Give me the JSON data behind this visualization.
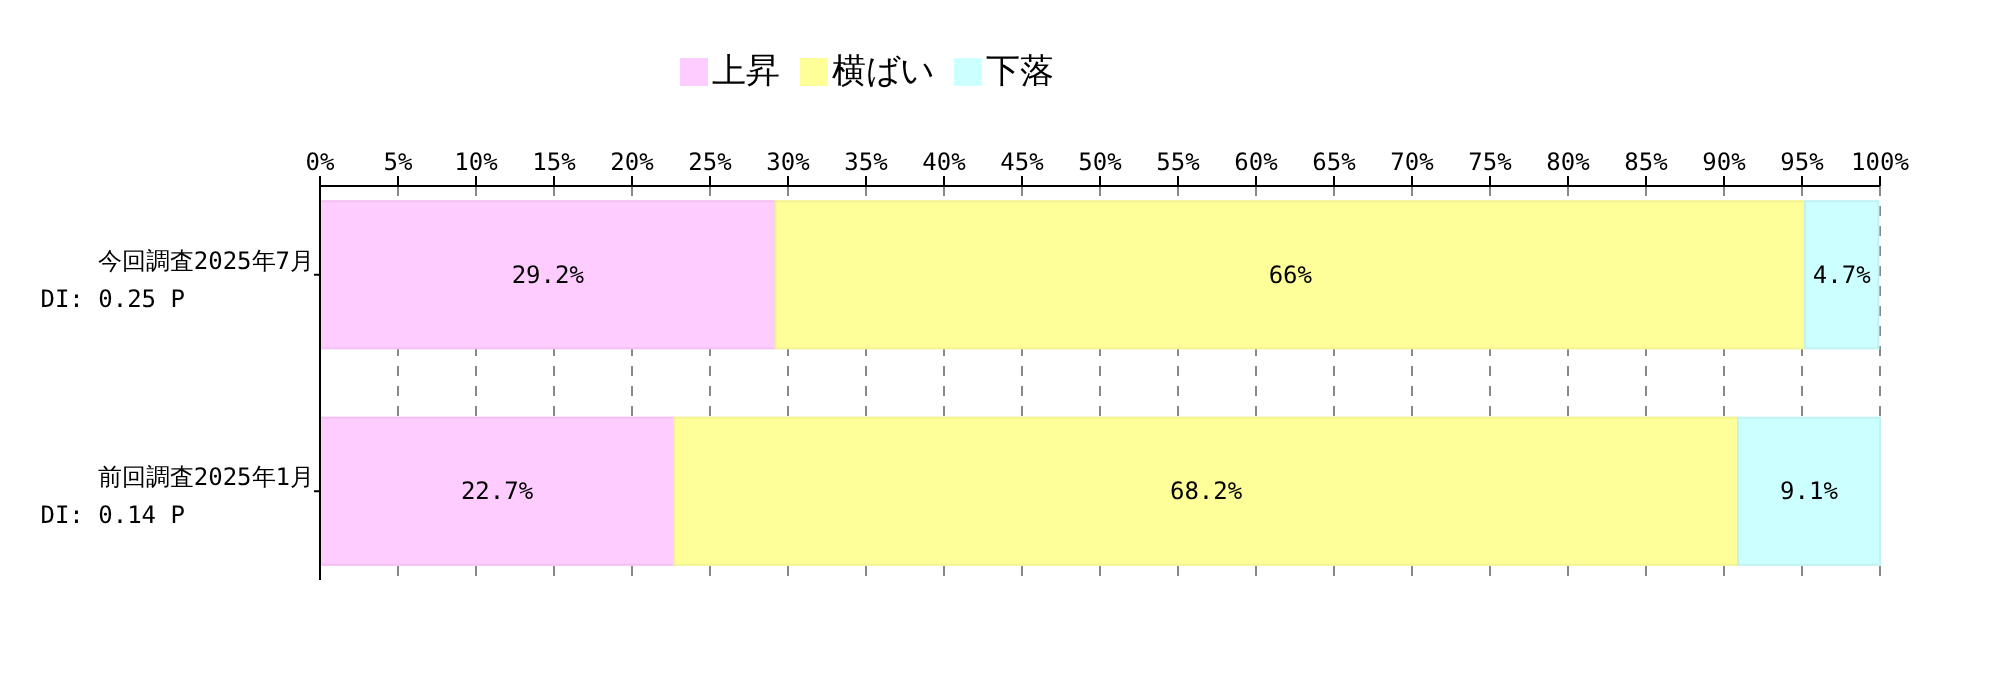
{
  "chart_data": {
    "type": "bar",
    "orientation": "horizontal",
    "stacked": true,
    "categories": [
      "今回調査2025年7月\n DI: 0.25 P",
      "前回調査2025年1月\n DI: 0.14 P"
    ],
    "series": [
      {
        "name": "上昇",
        "color": "#ffccff",
        "values": [
          29.2,
          22.7
        ],
        "value_labels": [
          "29.2%",
          "22.7%"
        ]
      },
      {
        "name": "横ばい",
        "color": "#ffff99",
        "values": [
          66,
          68.2
        ],
        "value_labels": [
          "66%",
          "68.2%"
        ]
      },
      {
        "name": "下落",
        "color": "#ccffff",
        "values": [
          4.7,
          9.1
        ],
        "value_labels": [
          "4.7%",
          "9.1%"
        ]
      }
    ],
    "xlim": [
      0,
      100
    ],
    "xticks": [
      {
        "value": 0,
        "label": "0%"
      },
      {
        "value": 5,
        "label": "5%"
      },
      {
        "value": 10,
        "label": "10%"
      },
      {
        "value": 15,
        "label": "15%"
      },
      {
        "value": 20,
        "label": "20%"
      },
      {
        "value": 25,
        "label": "25%"
      },
      {
        "value": 30,
        "label": "30%"
      },
      {
        "value": 35,
        "label": "35%"
      },
      {
        "value": 40,
        "label": "40%"
      },
      {
        "value": 45,
        "label": "45%"
      },
      {
        "value": 50,
        "label": "50%"
      },
      {
        "value": 55,
        "label": "55%"
      },
      {
        "value": 60,
        "label": "60%"
      },
      {
        "value": 65,
        "label": "65%"
      },
      {
        "value": 70,
        "label": "70%"
      },
      {
        "value": 75,
        "label": "75%"
      },
      {
        "value": 80,
        "label": "80%"
      },
      {
        "value": 85,
        "label": "85%"
      },
      {
        "value": 90,
        "label": "90%"
      },
      {
        "value": 95,
        "label": "95%"
      },
      {
        "value": 100,
        "label": "100%"
      }
    ],
    "grid": "x",
    "legend": "top"
  }
}
